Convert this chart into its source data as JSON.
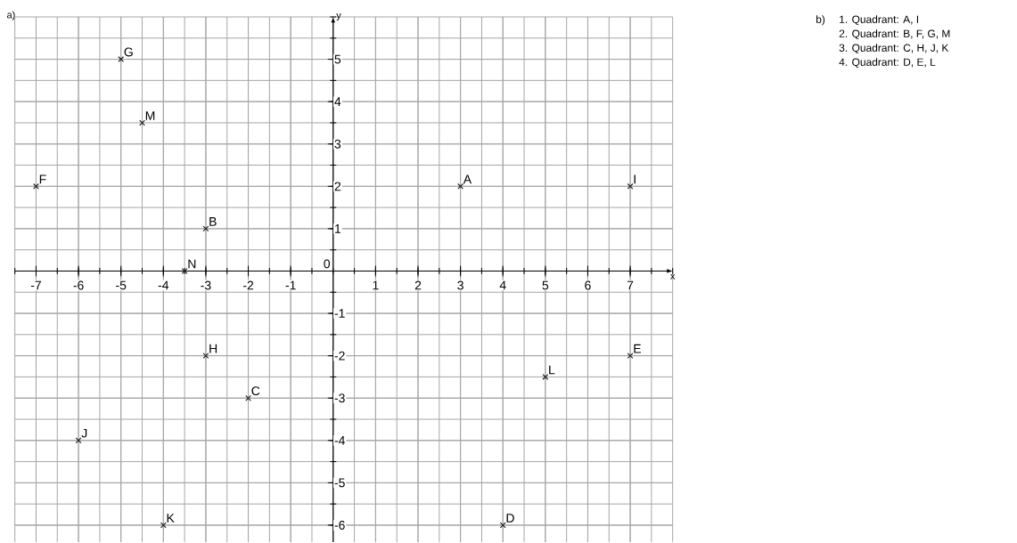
{
  "chart_data": {
    "type": "scatter",
    "title": "a)",
    "xlabel": "x",
    "ylabel": "y",
    "x": [
      3,
      -3,
      -2,
      4,
      7,
      -7,
      -5,
      -3,
      7,
      -6,
      -4,
      5,
      -4.5,
      -3.5
    ],
    "values": [
      2,
      1,
      -3,
      -6,
      -2,
      2,
      5,
      -2,
      2,
      -4,
      -6,
      -2.5,
      3.5,
      0
    ],
    "value_labels": [
      "A",
      "B",
      "C",
      "D",
      "E",
      "F",
      "G",
      "H",
      "I",
      "J",
      "K",
      "L",
      "M",
      "N"
    ],
    "color": "#1a1a1a",
    "marker": "cross",
    "grid": true,
    "xlim": [
      -7.5,
      8
    ],
    "ylim": [
      -6.4,
      6
    ],
    "xticks": [
      -7,
      -6,
      -5,
      -4,
      -3,
      -2,
      -1,
      1,
      2,
      3,
      4,
      5,
      6,
      7
    ],
    "yticks": [
      -6,
      -5,
      -4,
      -3,
      -2,
      -1,
      1,
      2,
      3,
      4,
      5
    ],
    "annotations": [
      "0",
      "b)",
      "1. Quadrant: A, I",
      "2. Quadrant: B, F, G, M",
      "3. Quadrant: C, H, J, K",
      "4. Quadrant: D, E, L"
    ]
  }
}
